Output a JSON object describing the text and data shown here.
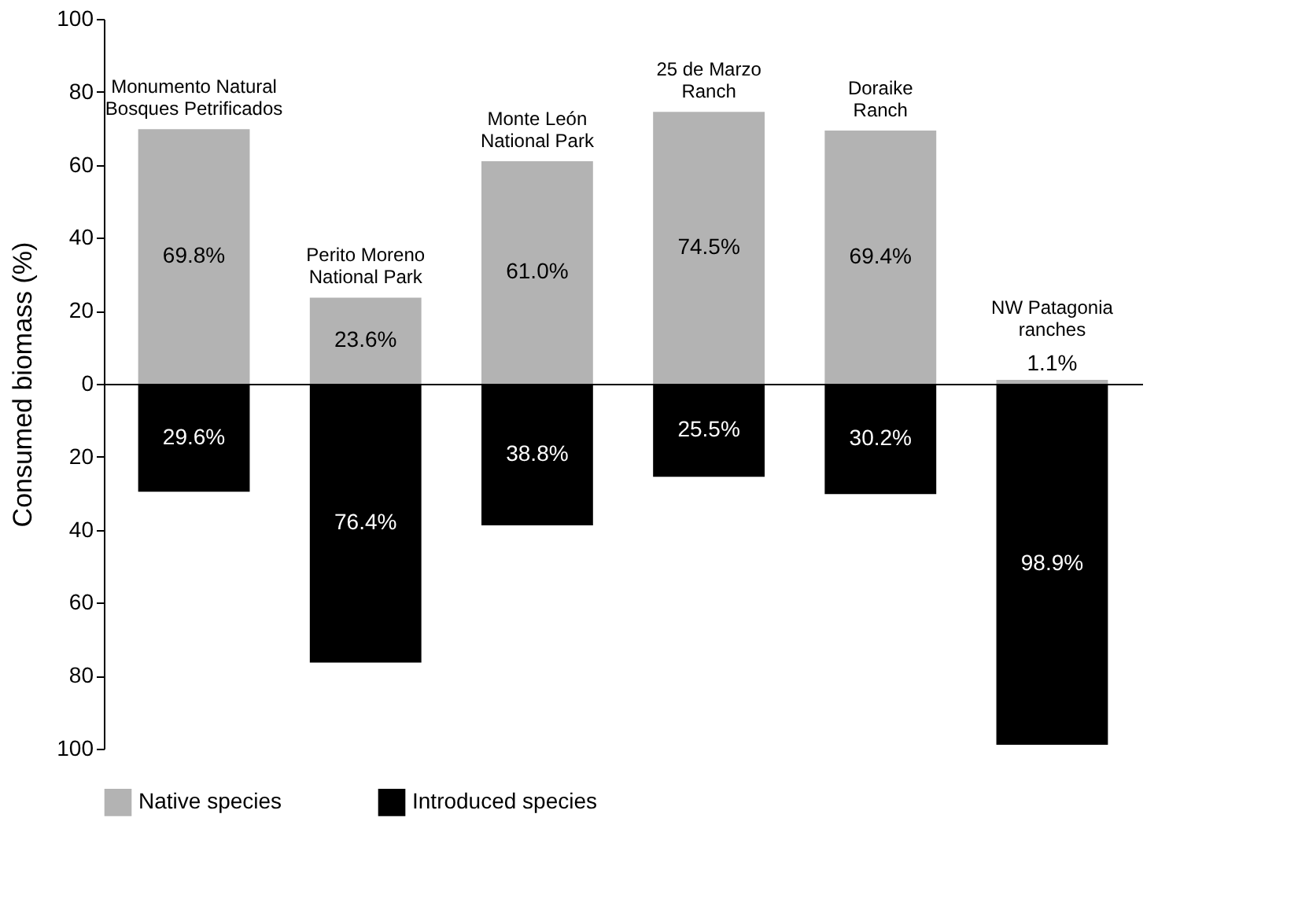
{
  "chart_data": [
    {
      "type": "bar",
      "ylabel": "Consumed biomass (%)",
      "categories": [
        "Monumento Natural Bosques Petrificados",
        "Perito Moreno National Park",
        "Monte León National Park",
        "25 de Marzo Ranch",
        "Doraike Ranch",
        "NW Patagonia ranches"
      ],
      "series": [
        {
          "name": "Native species",
          "color": "#b3b3b3",
          "values": [
            69.8,
            23.6,
            61.0,
            74.5,
            69.4,
            1.1
          ],
          "value_labels": [
            "69.8%",
            "23.6%",
            "61.0%",
            "74.5%",
            "69.4%",
            "1.1%"
          ]
        }
      ],
      "ylim": [
        0,
        100
      ],
      "yticks": [
        0,
        20,
        40,
        60,
        80,
        100
      ]
    },
    {
      "type": "bar",
      "categories": [
        null,
        null,
        null,
        null,
        null,
        null
      ],
      "series": [
        {
          "name": "Introduced species",
          "color": "#000000",
          "values": [
            29.6,
            76.4,
            38.8,
            25.5,
            30.2,
            98.9
          ],
          "value_labels": [
            "29.6%",
            "76.4%",
            "38.8%",
            "25.5%",
            "30.2%",
            "98.9%"
          ]
        }
      ],
      "ylim": [
        100,
        0
      ],
      "yticks": [
        20,
        40,
        60,
        80,
        100
      ],
      "tick_labels": "y",
      "legend": "bottom"
    }
  ]
}
